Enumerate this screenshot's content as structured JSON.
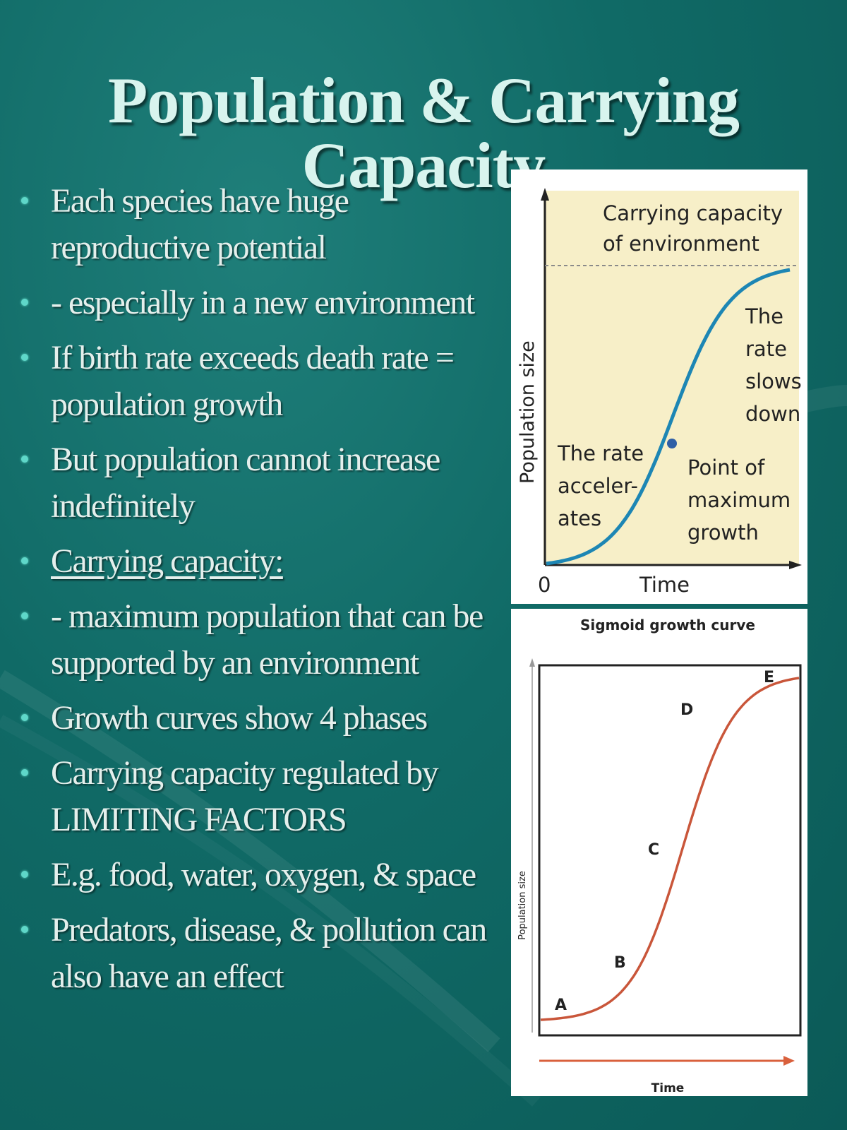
{
  "slide": {
    "title": "Population & Carrying Capacity",
    "bullets": [
      {
        "text": "Each species have huge reproductive potential",
        "underline": false
      },
      {
        "text": "- especially in a new environment",
        "underline": false
      },
      {
        "text": "If birth rate exceeds death rate = population growth",
        "underline": false
      },
      {
        "text": "But population cannot increase indefinitely",
        "underline": false
      },
      {
        "text": "Carrying capacity:",
        "underline": true
      },
      {
        "text": "- maximum population that can be supported by an environment",
        "underline": false
      },
      {
        "text": "Growth curves show 4 phases",
        "underline": false
      },
      {
        "text": "Carrying capacity regulated by LIMITING FACTORS",
        "underline": false
      },
      {
        "text": "E.g. food, water, oxygen, & space",
        "underline": false
      },
      {
        "text": "Predators, disease, & pollution can also have an effect",
        "underline": false
      }
    ]
  },
  "figure1": {
    "ylabel": "Population size",
    "xlabel": "Time",
    "origin": "0",
    "capacity_label": [
      "Carrying capacity",
      "of environment"
    ],
    "accel_label": [
      "The rate",
      "acceler-",
      "ates"
    ],
    "slow_label": [
      "The",
      "rate",
      "slows",
      "down"
    ],
    "max_label": [
      "Point of",
      "maximum",
      "growth"
    ],
    "colors": {
      "panel": "#f7efc8",
      "curve": "#1d86b4",
      "point": "#2f5fa6",
      "dash": "#8a8a8a"
    }
  },
  "figure2": {
    "title": "Sigmoid growth curve",
    "ylabel": "Population size",
    "xlabel": "Time",
    "phases": [
      "A",
      "B",
      "C",
      "D",
      "E"
    ],
    "colors": {
      "curve": "#c9563a",
      "arrow": "#d9603c"
    }
  }
}
